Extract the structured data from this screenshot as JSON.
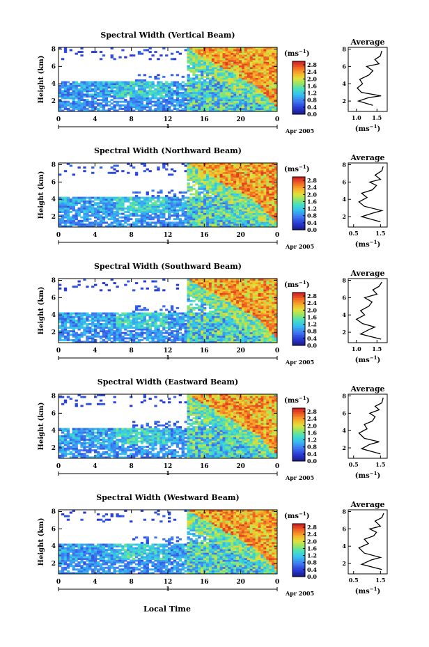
{
  "figure": {
    "xlabel": "Local Time",
    "date_label": "Apr 2005",
    "day_label": "1",
    "colorbar_unit": "(ms",
    "colorbar_unit_exp": "−1",
    "avg_title": "Average",
    "avg_unit": "(ms",
    "avg_unit_exp": "−1"
  },
  "chart_data": [
    {
      "type": "heatmap",
      "title": "Spectral Width (Vertical Beam)",
      "ylabel": "Height (km)",
      "xticks": [
        "0",
        "4",
        "8",
        "12",
        "16",
        "20",
        "0"
      ],
      "xlim": [
        0,
        24
      ],
      "yticks": [
        "2",
        "4",
        "6",
        "8"
      ],
      "ylim": [
        0.8,
        8.2
      ],
      "colorbar_ticks": [
        "0.0",
        "0.4",
        "0.8",
        "1.2",
        "1.6",
        "2.0",
        "2.4",
        "2.8"
      ],
      "colorbar_range": [
        0,
        3.0
      ],
      "avg_xticks": [
        "1.0",
        "1.5"
      ],
      "avg_xlim": [
        0.8,
        1.75
      ],
      "avg_profile": [
        [
          1.4,
          1.5
        ],
        [
          1.05,
          2.0
        ],
        [
          1.3,
          2.4
        ],
        [
          1.6,
          2.6
        ],
        [
          1.12,
          3.0
        ],
        [
          1.02,
          3.5
        ],
        [
          1.15,
          4.0
        ],
        [
          1.08,
          4.5
        ],
        [
          1.3,
          5.0
        ],
        [
          1.4,
          5.5
        ],
        [
          1.25,
          6.0
        ],
        [
          1.55,
          6.3
        ],
        [
          1.45,
          6.8
        ],
        [
          1.58,
          7.2
        ],
        [
          1.62,
          7.8
        ]
      ]
    },
    {
      "type": "heatmap",
      "title": "Spectral Width (Northward Beam)",
      "ylabel": "Height (km)",
      "xticks": [
        "0",
        "4",
        "8",
        "12",
        "16",
        "20",
        "0"
      ],
      "xlim": [
        0,
        24
      ],
      "yticks": [
        "2",
        "4",
        "6",
        "8"
      ],
      "ylim": [
        0.8,
        8.2
      ],
      "colorbar_ticks": [
        "0.0",
        "0.4",
        "0.8",
        "1.2",
        "1.6",
        "2.0",
        "2.4",
        "2.8"
      ],
      "colorbar_range": [
        0,
        3.0
      ],
      "avg_xticks": [
        "0.5",
        "1.5"
      ],
      "avg_xlim": [
        0.3,
        1.75
      ],
      "avg_profile": [
        [
          1.5,
          1.4
        ],
        [
          0.8,
          2.0
        ],
        [
          1.2,
          2.4
        ],
        [
          1.55,
          2.7
        ],
        [
          0.9,
          3.2
        ],
        [
          0.7,
          3.7
        ],
        [
          1.0,
          4.2
        ],
        [
          0.8,
          4.7
        ],
        [
          1.2,
          5.1
        ],
        [
          1.35,
          5.6
        ],
        [
          1.1,
          6.0
        ],
        [
          1.5,
          6.3
        ],
        [
          1.3,
          6.8
        ],
        [
          1.55,
          7.3
        ],
        [
          1.6,
          7.8
        ]
      ]
    },
    {
      "type": "heatmap",
      "title": "Spectral Width (Southward Beam)",
      "ylabel": "Height (km)",
      "xticks": [
        "0",
        "4",
        "8",
        "12",
        "16",
        "20",
        "0"
      ],
      "xlim": [
        0,
        24
      ],
      "yticks": [
        "2",
        "4",
        "6",
        "8"
      ],
      "ylim": [
        0.8,
        8.2
      ],
      "colorbar_ticks": [
        "0.0",
        "0.4",
        "0.8",
        "1.2",
        "1.6",
        "2.0",
        "2.4",
        "2.8"
      ],
      "colorbar_range": [
        0,
        3.0
      ],
      "avg_xticks": [
        "1.0",
        "1.5"
      ],
      "avg_xlim": [
        0.8,
        1.75
      ],
      "avg_profile": [
        [
          1.6,
          1.2
        ],
        [
          1.1,
          1.8
        ],
        [
          1.3,
          2.3
        ],
        [
          1.45,
          2.6
        ],
        [
          1.15,
          3.0
        ],
        [
          1.0,
          3.5
        ],
        [
          1.2,
          4.0
        ],
        [
          1.1,
          4.5
        ],
        [
          1.3,
          5.0
        ],
        [
          1.38,
          5.5
        ],
        [
          1.2,
          6.0
        ],
        [
          1.5,
          6.4
        ],
        [
          1.4,
          6.9
        ],
        [
          1.55,
          7.3
        ],
        [
          1.62,
          7.8
        ]
      ]
    },
    {
      "type": "heatmap",
      "title": "Spectral Width (Eastward Beam)",
      "ylabel": "Height (km)",
      "xticks": [
        "0",
        "4",
        "8",
        "12",
        "16",
        "20",
        "0"
      ],
      "xlim": [
        0,
        24
      ],
      "yticks": [
        "2",
        "4",
        "6",
        "8"
      ],
      "ylim": [
        0.8,
        8.2
      ],
      "colorbar_ticks": [
        "0.0",
        "0.4",
        "0.8",
        "1.2",
        "1.6",
        "2.0",
        "2.4",
        "2.8"
      ],
      "colorbar_range": [
        0,
        3.0
      ],
      "avg_xticks": [
        "0.5",
        "1.5"
      ],
      "avg_xlim": [
        0.3,
        1.75
      ],
      "avg_profile": [
        [
          1.5,
          1.3
        ],
        [
          0.8,
          1.9
        ],
        [
          1.1,
          2.4
        ],
        [
          1.45,
          2.7
        ],
        [
          0.9,
          3.1
        ],
        [
          0.7,
          3.7
        ],
        [
          1.0,
          4.2
        ],
        [
          0.9,
          4.7
        ],
        [
          1.2,
          5.1
        ],
        [
          1.3,
          5.6
        ],
        [
          1.1,
          6.0
        ],
        [
          1.45,
          6.4
        ],
        [
          1.3,
          6.8
        ],
        [
          1.55,
          7.2
        ],
        [
          1.6,
          7.8
        ]
      ]
    },
    {
      "type": "heatmap",
      "title": "Spectral Width (Westward Beam)",
      "ylabel": "Height (km)",
      "xticks": [
        "0",
        "4",
        "8",
        "12",
        "16",
        "20",
        "0"
      ],
      "xlim": [
        0,
        24
      ],
      "yticks": [
        "2",
        "4",
        "6",
        "8"
      ],
      "ylim": [
        0.8,
        8.2
      ],
      "colorbar_ticks": [
        "0.0",
        "0.4",
        "0.8",
        "1.2",
        "1.6",
        "2.0",
        "2.4",
        "2.8"
      ],
      "colorbar_range": [
        0,
        3.0
      ],
      "avg_xticks": [
        "0.5",
        "1.5"
      ],
      "avg_xlim": [
        0.3,
        1.75
      ],
      "avg_profile": [
        [
          1.55,
          1.3
        ],
        [
          0.8,
          1.9
        ],
        [
          1.15,
          2.4
        ],
        [
          1.5,
          2.7
        ],
        [
          0.9,
          3.2
        ],
        [
          0.7,
          3.8
        ],
        [
          1.05,
          4.3
        ],
        [
          0.9,
          4.8
        ],
        [
          1.25,
          5.2
        ],
        [
          1.35,
          5.6
        ],
        [
          1.1,
          6.0
        ],
        [
          1.5,
          6.3
        ],
        [
          1.3,
          6.9
        ],
        [
          1.55,
          7.3
        ],
        [
          1.62,
          7.8
        ]
      ]
    }
  ]
}
